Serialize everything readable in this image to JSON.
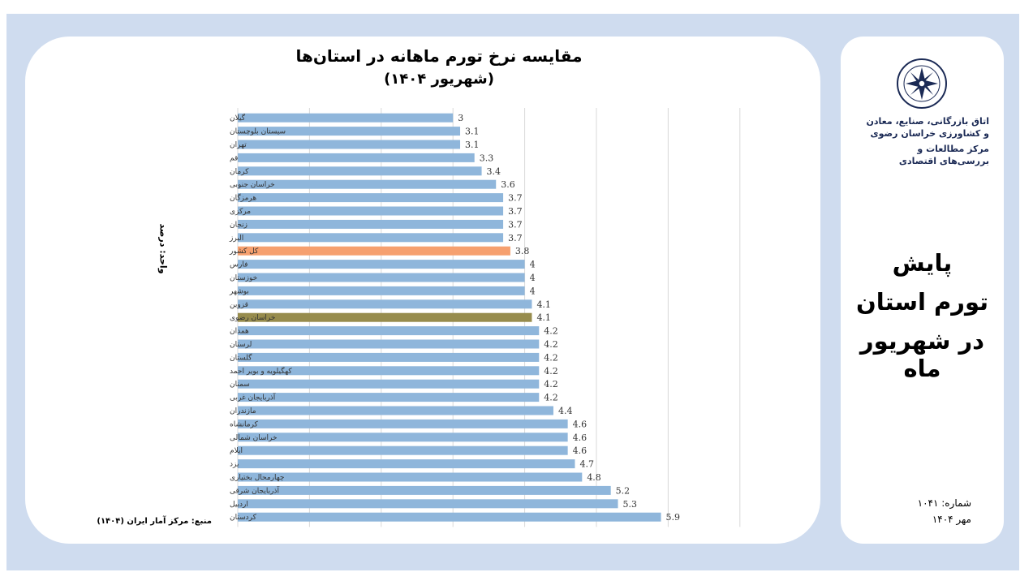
{
  "chart_data": {
    "type": "bar",
    "orientation": "horizontal",
    "title": "مقایسه نرخ تورم ماهانه در استان‌ها",
    "subtitle": "(شهریور ۱۴۰۴)",
    "ylabel": "واحد: درصد",
    "source": "منبع: مرکز آمار ایران (۱۴۰۴)",
    "xlim": [
      0,
      7
    ],
    "grid": true,
    "categories": [
      "گیلان",
      "سیستان بلوچستان",
      "تهران",
      "قم",
      "کرمان",
      "خراسان جنوبی",
      "هرمزگان",
      "مرکزی",
      "زنجان",
      "البرز",
      "کل کشور",
      "فارس",
      "خوزستان",
      "بوشهر",
      "قزوین",
      "خراسان رضوی",
      "همدان",
      "لرستان",
      "گلستان",
      "کهگیلویه و بویر احمد",
      "سمنان",
      "آذربایجان غربی",
      "مازندران",
      "کرمانشاه",
      "خراسان شمالی",
      "ایلام",
      "یزد",
      "چهارمحال بختیاری",
      "آذربایجان شرقی",
      "اردبیل",
      "کردستان"
    ],
    "values": [
      3,
      3.1,
      3.1,
      3.3,
      3.4,
      3.6,
      3.7,
      3.7,
      3.7,
      3.7,
      3.8,
      4,
      4,
      4,
      4.1,
      4.1,
      4.2,
      4.2,
      4.2,
      4.2,
      4.2,
      4.2,
      4.4,
      4.6,
      4.6,
      4.6,
      4.7,
      4.8,
      5.2,
      5.3,
      5.9
    ],
    "colors": {
      "default": "#8fb6db",
      "highlight_national": "#f6a06f",
      "highlight_province": "#978c4d"
    },
    "highlights": {
      "کل کشور": "highlight_national",
      "خراسان رضوی": "highlight_province"
    }
  },
  "sidebar": {
    "org_line_1": "اتاق بازرگانی، صنایع، معادن",
    "org_line_2": "و کشاورزی خراسان رضوی",
    "dept_line_1": "مرکز مطالعات و",
    "dept_line_2": "بررسی‌های اقتصادی",
    "title_line_1": "پایش",
    "title_line_2": "تورم استان",
    "title_line_3": "در شهریور ماه",
    "issue": "شماره: ۱۰۴۱",
    "date": "مهر ۱۴۰۴"
  }
}
